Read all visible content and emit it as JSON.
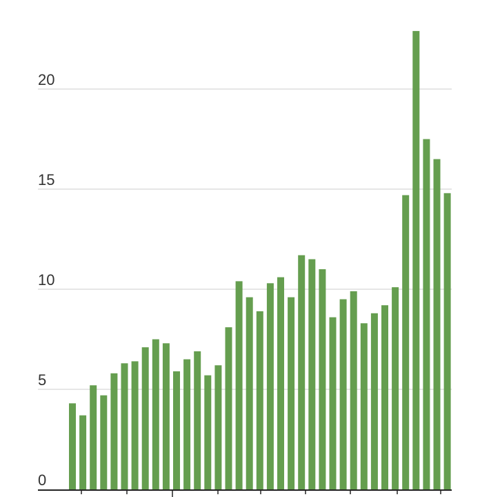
{
  "chart_data": {
    "type": "bar",
    "title": "",
    "xlabel": "",
    "ylabel": "",
    "ylim": [
      0,
      23
    ],
    "yticks": [
      0,
      5,
      10,
      15,
      20
    ],
    "grid": true,
    "bar_color": "#659e4f",
    "values": [
      4.3,
      3.7,
      5.2,
      4.7,
      5.8,
      6.3,
      6.4,
      7.1,
      7.5,
      7.3,
      5.9,
      6.5,
      6.9,
      5.7,
      6.2,
      8.1,
      10.4,
      9.6,
      8.9,
      10.3,
      10.6,
      9.6,
      11.7,
      11.5,
      11.0,
      8.6,
      9.5,
      9.9,
      8.3,
      8.8,
      9.2,
      10.1,
      14.7,
      22.9,
      17.5,
      16.5,
      14.8
    ]
  }
}
